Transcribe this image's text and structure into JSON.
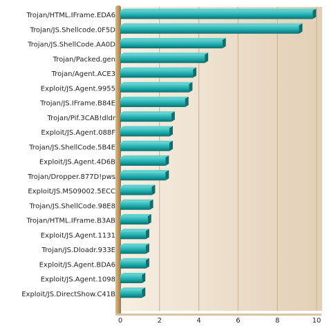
{
  "chart_data": {
    "type": "bar",
    "orientation": "horizontal",
    "title": "",
    "xlabel": "",
    "ylabel": "",
    "xlim": [
      0,
      10
    ],
    "xticks": [
      0,
      2,
      4,
      6,
      8,
      10
    ],
    "grid": true,
    "legend": "none",
    "colors": {
      "bar_face": "#1aa8a8",
      "bar_top": "#5fd0d0",
      "bar_side": "#0c6f70",
      "plot_bg_left": "#f7efe3",
      "plot_bg_right": "#e2cfb5",
      "gridline": "#c9b08e",
      "axis_post": "#b08a58"
    },
    "categories": [
      "Trojan/HTML.IFrame.EDA6",
      "Trojan/JS.Shellcode.0F5D",
      "Trojan/JS.ShellCode.AA0D",
      "Trojan/Packed.gen",
      "Trojan/Agent.ACE3",
      "Exploit/JS.Agent.9955",
      "Trojan/JS.IFrame.B84E",
      "Trojan/Pif.3CAB!dldr",
      "Exploit/JS.Agent.088F",
      "Trojan/JS.ShellCode.5B4E",
      "Exploit/JS.Agent.4D6B",
      "Trojan/Dropper.877D!pws",
      "Exploit/JS.MS09002.5ECC",
      "Trojan/JS.ShellCode.98E8",
      "Trojan/HTML.IFrame.B3AB",
      "Exploit/JS.Agent.1131",
      "Trojan/JS.Dloadr.933E",
      "Exploit/JS.Agent.BDA6",
      "Exploit/JS.Agent.1098",
      "Exploit/JS.DirectShow.C41B"
    ],
    "values": [
      9.8,
      9.1,
      5.2,
      4.3,
      3.7,
      3.5,
      3.3,
      2.6,
      2.5,
      2.5,
      2.3,
      2.3,
      1.6,
      1.5,
      1.4,
      1.3,
      1.3,
      1.3,
      1.1,
      1.1
    ]
  }
}
